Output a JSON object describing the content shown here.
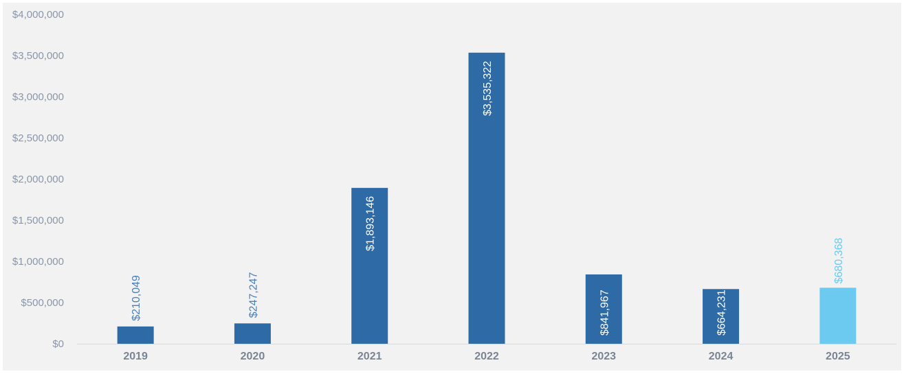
{
  "chart_data": {
    "type": "bar",
    "categories": [
      "2019",
      "2020",
      "2021",
      "2022",
      "2023",
      "2024",
      "2025"
    ],
    "values": [
      210049,
      247247,
      1893146,
      3535322,
      841967,
      664231,
      680368
    ],
    "data_labels": [
      "$210,049",
      "$247,247",
      "$1,893,146",
      "$3,535,322",
      "$841,967",
      "$664,231",
      "$680,368"
    ],
    "ylim": [
      0,
      4000000
    ],
    "yticks": [
      0,
      500000,
      1000000,
      1500000,
      2000000,
      2500000,
      3000000,
      3500000,
      4000000
    ],
    "ytick_labels": [
      "$0",
      "$500,000",
      "$1,000,000",
      "$1,500,000",
      "$2,000,000",
      "$2,500,000",
      "$3,000,000",
      "$3,500,000",
      "$4,000,000"
    ],
    "grid": false,
    "legend": "none",
    "title": "",
    "xlabel": "",
    "ylabel": ""
  },
  "colors": {
    "bar": "#2e6aa6",
    "bar_highlight": "#6ccaf0",
    "label_inside": "#ffffff",
    "label_outside": "#4a7fb8"
  },
  "highlight_index": 6
}
